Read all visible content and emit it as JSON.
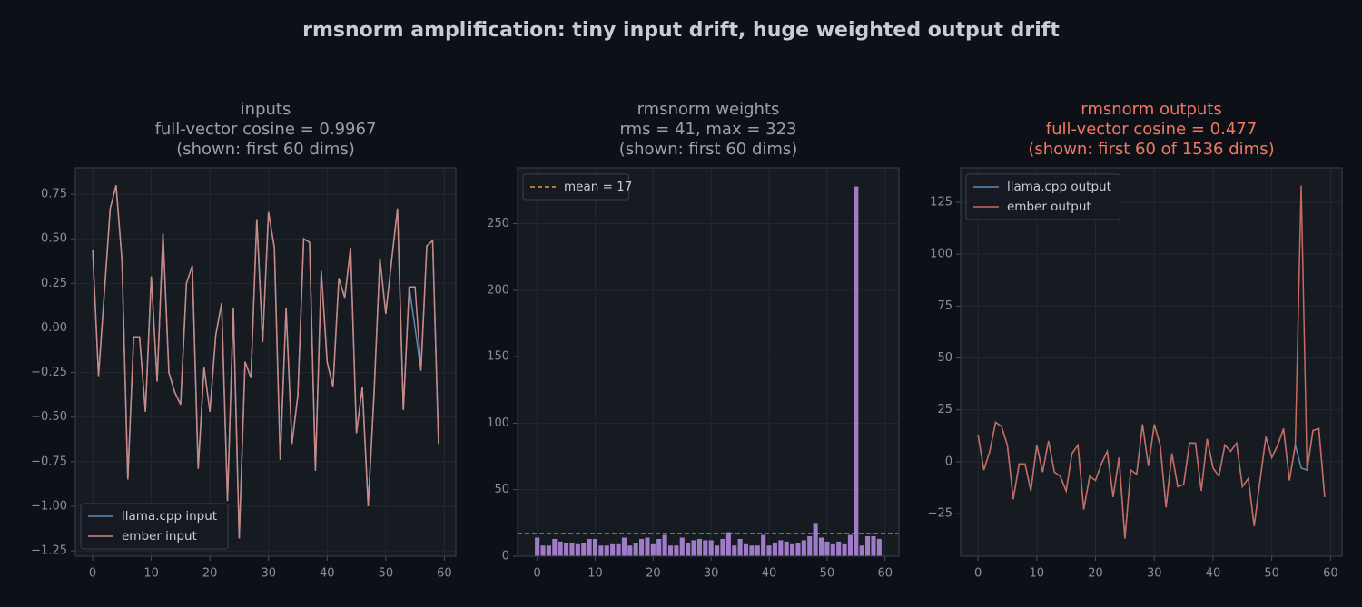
{
  "title": "rmsnorm amplification: tiny input drift, huge weighted output drift",
  "chart_data": [
    {
      "type": "line",
      "title": [
        "inputs",
        "full-vector cosine = 0.9967",
        "(shown: first 60 dims)"
      ],
      "title_color": "#9aa0a8",
      "x": [
        0,
        1,
        2,
        3,
        4,
        5,
        6,
        7,
        8,
        9,
        10,
        11,
        12,
        13,
        14,
        15,
        16,
        17,
        18,
        19,
        20,
        21,
        22,
        23,
        24,
        25,
        26,
        27,
        28,
        29,
        30,
        31,
        32,
        33,
        34,
        35,
        36,
        37,
        38,
        39,
        40,
        41,
        42,
        43,
        44,
        45,
        46,
        47,
        48,
        49,
        50,
        51,
        52,
        53,
        54,
        55,
        56,
        57,
        58,
        59
      ],
      "series": [
        {
          "name": "llama.cpp input",
          "color": "#5b8ab8",
          "values": [
            0.44,
            -0.27,
            0.2,
            0.67,
            0.8,
            0.38,
            -0.85,
            -0.05,
            -0.05,
            -0.47,
            0.29,
            -0.3,
            0.53,
            -0.25,
            -0.36,
            -0.43,
            0.25,
            0.35,
            -0.79,
            -0.22,
            -0.47,
            -0.04,
            0.14,
            -0.97,
            0.11,
            -1.18,
            -0.19,
            -0.28,
            0.61,
            -0.08,
            0.65,
            0.45,
            -0.74,
            0.11,
            -0.65,
            -0.38,
            0.5,
            0.48,
            -0.8,
            0.32,
            -0.19,
            -0.33,
            0.28,
            0.17,
            0.45,
            -0.59,
            -0.33,
            -1.0,
            -0.37,
            0.39,
            0.08,
            0.38,
            0.67,
            -0.46,
            0.23,
            0.0,
            -0.24,
            0.46,
            0.49,
            -0.65
          ]
        },
        {
          "name": "ember input",
          "color": "#c98a86",
          "values": [
            0.44,
            -0.27,
            0.2,
            0.67,
            0.8,
            0.38,
            -0.85,
            -0.05,
            -0.05,
            -0.47,
            0.29,
            -0.3,
            0.53,
            -0.25,
            -0.36,
            -0.43,
            0.25,
            0.35,
            -0.79,
            -0.22,
            -0.47,
            -0.04,
            0.14,
            -0.97,
            0.11,
            -1.18,
            -0.19,
            -0.28,
            0.61,
            -0.08,
            0.65,
            0.45,
            -0.74,
            0.11,
            -0.65,
            -0.38,
            0.5,
            0.48,
            -0.8,
            0.32,
            -0.19,
            -0.33,
            0.28,
            0.17,
            0.45,
            -0.59,
            -0.33,
            -1.0,
            -0.37,
            0.39,
            0.08,
            0.38,
            0.67,
            -0.46,
            0.23,
            0.23,
            -0.24,
            0.46,
            0.49,
            -0.65
          ]
        }
      ],
      "xlim": [
        -2.95,
        61.95
      ],
      "xticks": [
        0,
        10,
        20,
        30,
        40,
        50,
        60
      ],
      "ylim": [
        -1.28,
        0.898
      ],
      "yticks": [
        {
          "value": -1.25,
          "label": "−1.25"
        },
        {
          "value": -1.0,
          "label": "−1.00"
        },
        {
          "value": -0.75,
          "label": "−0.75"
        },
        {
          "value": -0.5,
          "label": "−0.50"
        },
        {
          "value": -0.25,
          "label": "−0.25"
        },
        {
          "value": 0,
          "label": "0.00"
        },
        {
          "value": 0.25,
          "label": "0.25"
        },
        {
          "value": 0.5,
          "label": "0.50"
        },
        {
          "value": 0.75,
          "label": "0.75"
        }
      ],
      "grid": true,
      "legend": "lower left"
    },
    {
      "type": "bar",
      "title": [
        "rmsnorm weights",
        "rms = 41,  max = 323",
        "(shown: first 60 dims)"
      ],
      "title_color": "#9aa0a8",
      "x": [
        0,
        1,
        2,
        3,
        4,
        5,
        6,
        7,
        8,
        9,
        10,
        11,
        12,
        13,
        14,
        15,
        16,
        17,
        18,
        19,
        20,
        21,
        22,
        23,
        24,
        25,
        26,
        27,
        28,
        29,
        30,
        31,
        32,
        33,
        34,
        35,
        36,
        37,
        38,
        39,
        40,
        41,
        42,
        43,
        44,
        45,
        46,
        47,
        48,
        49,
        50,
        51,
        52,
        53,
        54,
        55,
        56,
        57,
        58,
        59
      ],
      "values": [
        14,
        8,
        8,
        13,
        11,
        10,
        10,
        9,
        10,
        13,
        13,
        8,
        8,
        9,
        9,
        14,
        8,
        10,
        13,
        14,
        9,
        13,
        16,
        8,
        8,
        14,
        10,
        12,
        13,
        12,
        12,
        8,
        13,
        18,
        8,
        13,
        9,
        8,
        8,
        16,
        8,
        10,
        12,
        11,
        9,
        10,
        12,
        15,
        25,
        14,
        11,
        9,
        11,
        9,
        16,
        278,
        8,
        15,
        15,
        13
      ],
      "color": "#a07cc8",
      "hline": {
        "value": 17,
        "label": "mean = 17",
        "color": "#d9a030"
      },
      "xlim": [
        -3.39,
        62.39
      ],
      "xticks": [
        0,
        10,
        20,
        30,
        40,
        50,
        60
      ],
      "ylim": [
        0,
        292
      ],
      "yticks": [
        0,
        50,
        100,
        150,
        200,
        250
      ],
      "grid": true,
      "legend": "upper left"
    },
    {
      "type": "line",
      "title": [
        "rmsnorm outputs",
        "full-vector cosine = 0.477",
        "(shown: first 60 of 1536 dims)"
      ],
      "title_color": "#f07860",
      "x": [
        0,
        1,
        2,
        3,
        4,
        5,
        6,
        7,
        8,
        9,
        10,
        11,
        12,
        13,
        14,
        15,
        16,
        17,
        18,
        19,
        20,
        21,
        22,
        23,
        24,
        25,
        26,
        27,
        28,
        29,
        30,
        31,
        32,
        33,
        34,
        35,
        36,
        37,
        38,
        39,
        40,
        41,
        42,
        43,
        44,
        45,
        46,
        47,
        48,
        49,
        50,
        51,
        52,
        53,
        54,
        55,
        56,
        57,
        58,
        59
      ],
      "series": [
        {
          "name": "llama.cpp output",
          "color": "#5b8ab8",
          "values": [
            13,
            -4,
            5,
            19,
            17,
            8,
            -18,
            -1,
            -1,
            -14,
            8,
            -5,
            10,
            -5,
            -7,
            -14,
            4,
            8,
            -23,
            -7,
            -9,
            -1,
            5,
            -17,
            2,
            -37,
            -4,
            -6,
            18,
            -2,
            18,
            8,
            -22,
            4,
            -12,
            -11,
            9,
            9,
            -14,
            11,
            -3,
            -7,
            8,
            5,
            9,
            -12,
            -8,
            -31,
            -9,
            12,
            2,
            8,
            16,
            -9,
            8,
            -3,
            -4,
            15,
            16,
            -17
          ]
        },
        {
          "name": "ember output",
          "color": "#c86a60",
          "values": [
            13,
            -4,
            5,
            19,
            17,
            8,
            -18,
            -1,
            -1,
            -14,
            8,
            -5,
            10,
            -5,
            -7,
            -14,
            4,
            8,
            -23,
            -7,
            -9,
            -1,
            5,
            -17,
            2,
            -37,
            -4,
            -6,
            18,
            -2,
            18,
            8,
            -22,
            4,
            -12,
            -11,
            9,
            9,
            -14,
            11,
            -3,
            -7,
            8,
            5,
            9,
            -12,
            -8,
            -31,
            -9,
            12,
            2,
            8,
            16,
            -9,
            8,
            133,
            -4,
            15,
            16,
            -17
          ]
        }
      ],
      "xlim": [
        -2.95,
        61.95
      ],
      "xticks": [
        0,
        10,
        20,
        30,
        40,
        50,
        60
      ],
      "ylim": [
        -45.5,
        141.6
      ],
      "yticks": [
        {
          "value": -25,
          "label": "−25"
        },
        0,
        25,
        50,
        75,
        100,
        125
      ],
      "grid": true,
      "legend": "upper left"
    }
  ]
}
